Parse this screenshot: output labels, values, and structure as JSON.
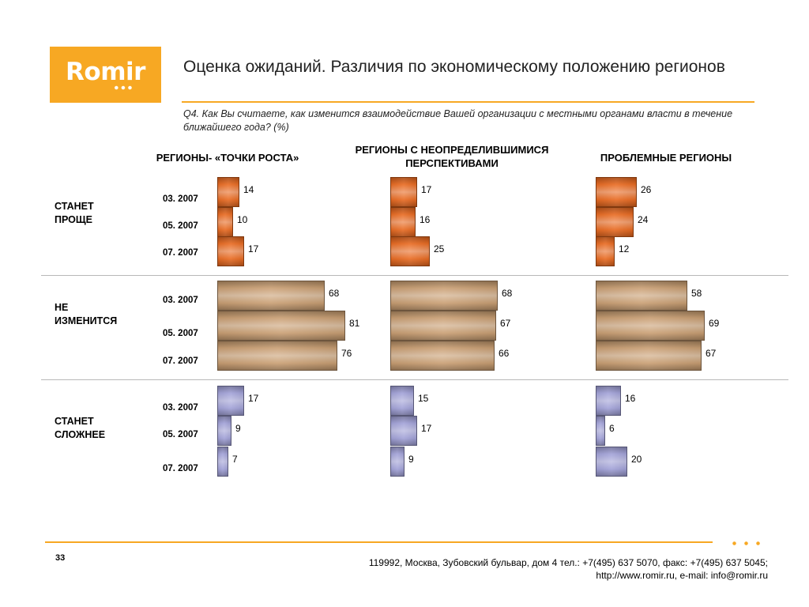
{
  "logo": {
    "text": "Romir"
  },
  "title": "Оценка ожиданий. Различия по экономическому положению регионов",
  "question": "Q4. Как Вы считаете, как изменится взаимодействие Вашей организации с местными органами власти в течение ближайшего года? (%)",
  "colors": {
    "accent": "#f7a823",
    "simpler": "#e8651a",
    "unchanged": "#c79b6e",
    "harder": "#9e9ed6"
  },
  "columns": [
    {
      "label": "РЕГИОНЫ- «ТОЧКИ РОСТА»"
    },
    {
      "label": "РЕГИОНЫ   С НЕОПРЕДЕЛИВШИМИСЯ ПЕРСПЕКТИВАМИ"
    },
    {
      "label": "ПРОБЛЕМНЫЕ РЕГИОНЫ"
    }
  ],
  "rows": [
    {
      "label": "СТАНЕТ ПРОЩЕ"
    },
    {
      "label": "НЕ ИЗМЕНИТСЯ"
    },
    {
      "label": "СТАНЕТ СЛОЖНЕЕ"
    }
  ],
  "chart_data": {
    "type": "bar",
    "orientation": "horizontal",
    "unit": "%",
    "periods": [
      "03. 2007",
      "05. 2007",
      "07. 2007"
    ],
    "groups": [
      "РЕГИОНЫ- «ТОЧКИ РОСТА»",
      "РЕГИОНЫ   С НЕОПРЕДЕЛИВШИМИСЯ ПЕРСПЕКТИВАМИ",
      "ПРОБЛЕМНЫЕ РЕГИОНЫ"
    ],
    "answers": [
      "СТАНЕТ ПРОЩЕ",
      "НЕ ИЗМЕНИТСЯ",
      "СТАНЕТ СЛОЖНЕЕ"
    ],
    "values": [
      [
        [
          14,
          10,
          17
        ],
        [
          17,
          16,
          25
        ],
        [
          26,
          24,
          12
        ]
      ],
      [
        [
          68,
          81,
          76
        ],
        [
          68,
          67,
          66
        ],
        [
          58,
          69,
          67
        ]
      ],
      [
        [
          17,
          9,
          7
        ],
        [
          15,
          17,
          9
        ],
        [
          16,
          6,
          20
        ]
      ]
    ]
  },
  "footer": {
    "page": "33",
    "address": "119992, Москва, Зубовский бульвар, дом 4   тел.: +7(495) 637 5070, факс: +7(495) 637 5045;",
    "contacts": "http://www.romir.ru, e-mail: info@romir.ru"
  }
}
